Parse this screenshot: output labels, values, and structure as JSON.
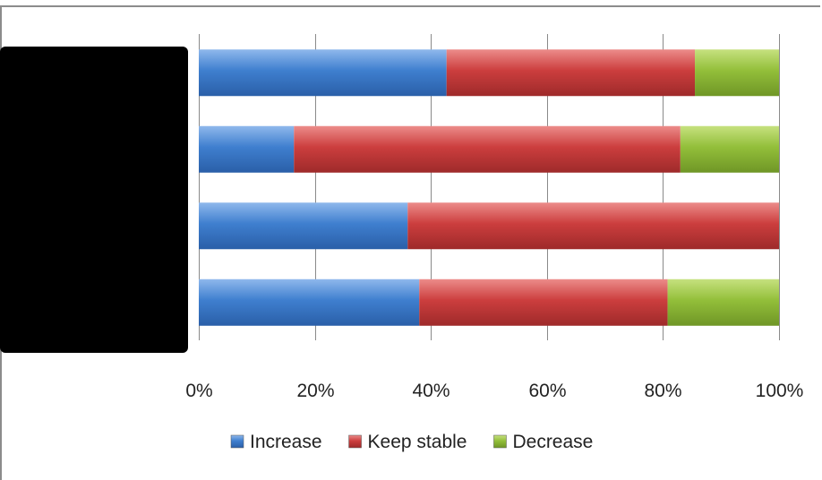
{
  "chart_data": {
    "type": "bar",
    "orientation": "horizontal",
    "stacked": "percent",
    "categories": [
      "",
      "",
      "",
      ""
    ],
    "categories_note_hidden": true,
    "series": [
      {
        "name": "Increase",
        "values": [
          42.7,
          16.4,
          36.0,
          38.0
        ],
        "color": "#3f7fcf"
      },
      {
        "name": "Keep stable",
        "values": [
          42.8,
          66.6,
          64.0,
          42.8
        ],
        "color": "#cc3e3e"
      },
      {
        "name": "Decrease",
        "values": [
          14.5,
          17.0,
          0.0,
          19.2
        ],
        "color": "#93bf3a"
      }
    ],
    "xlim": [
      0,
      100
    ],
    "x_ticks": [
      "0%",
      "20%",
      "40%",
      "60%",
      "80%",
      "100%"
    ],
    "grid": "vertical",
    "legend_position": "bottom"
  }
}
